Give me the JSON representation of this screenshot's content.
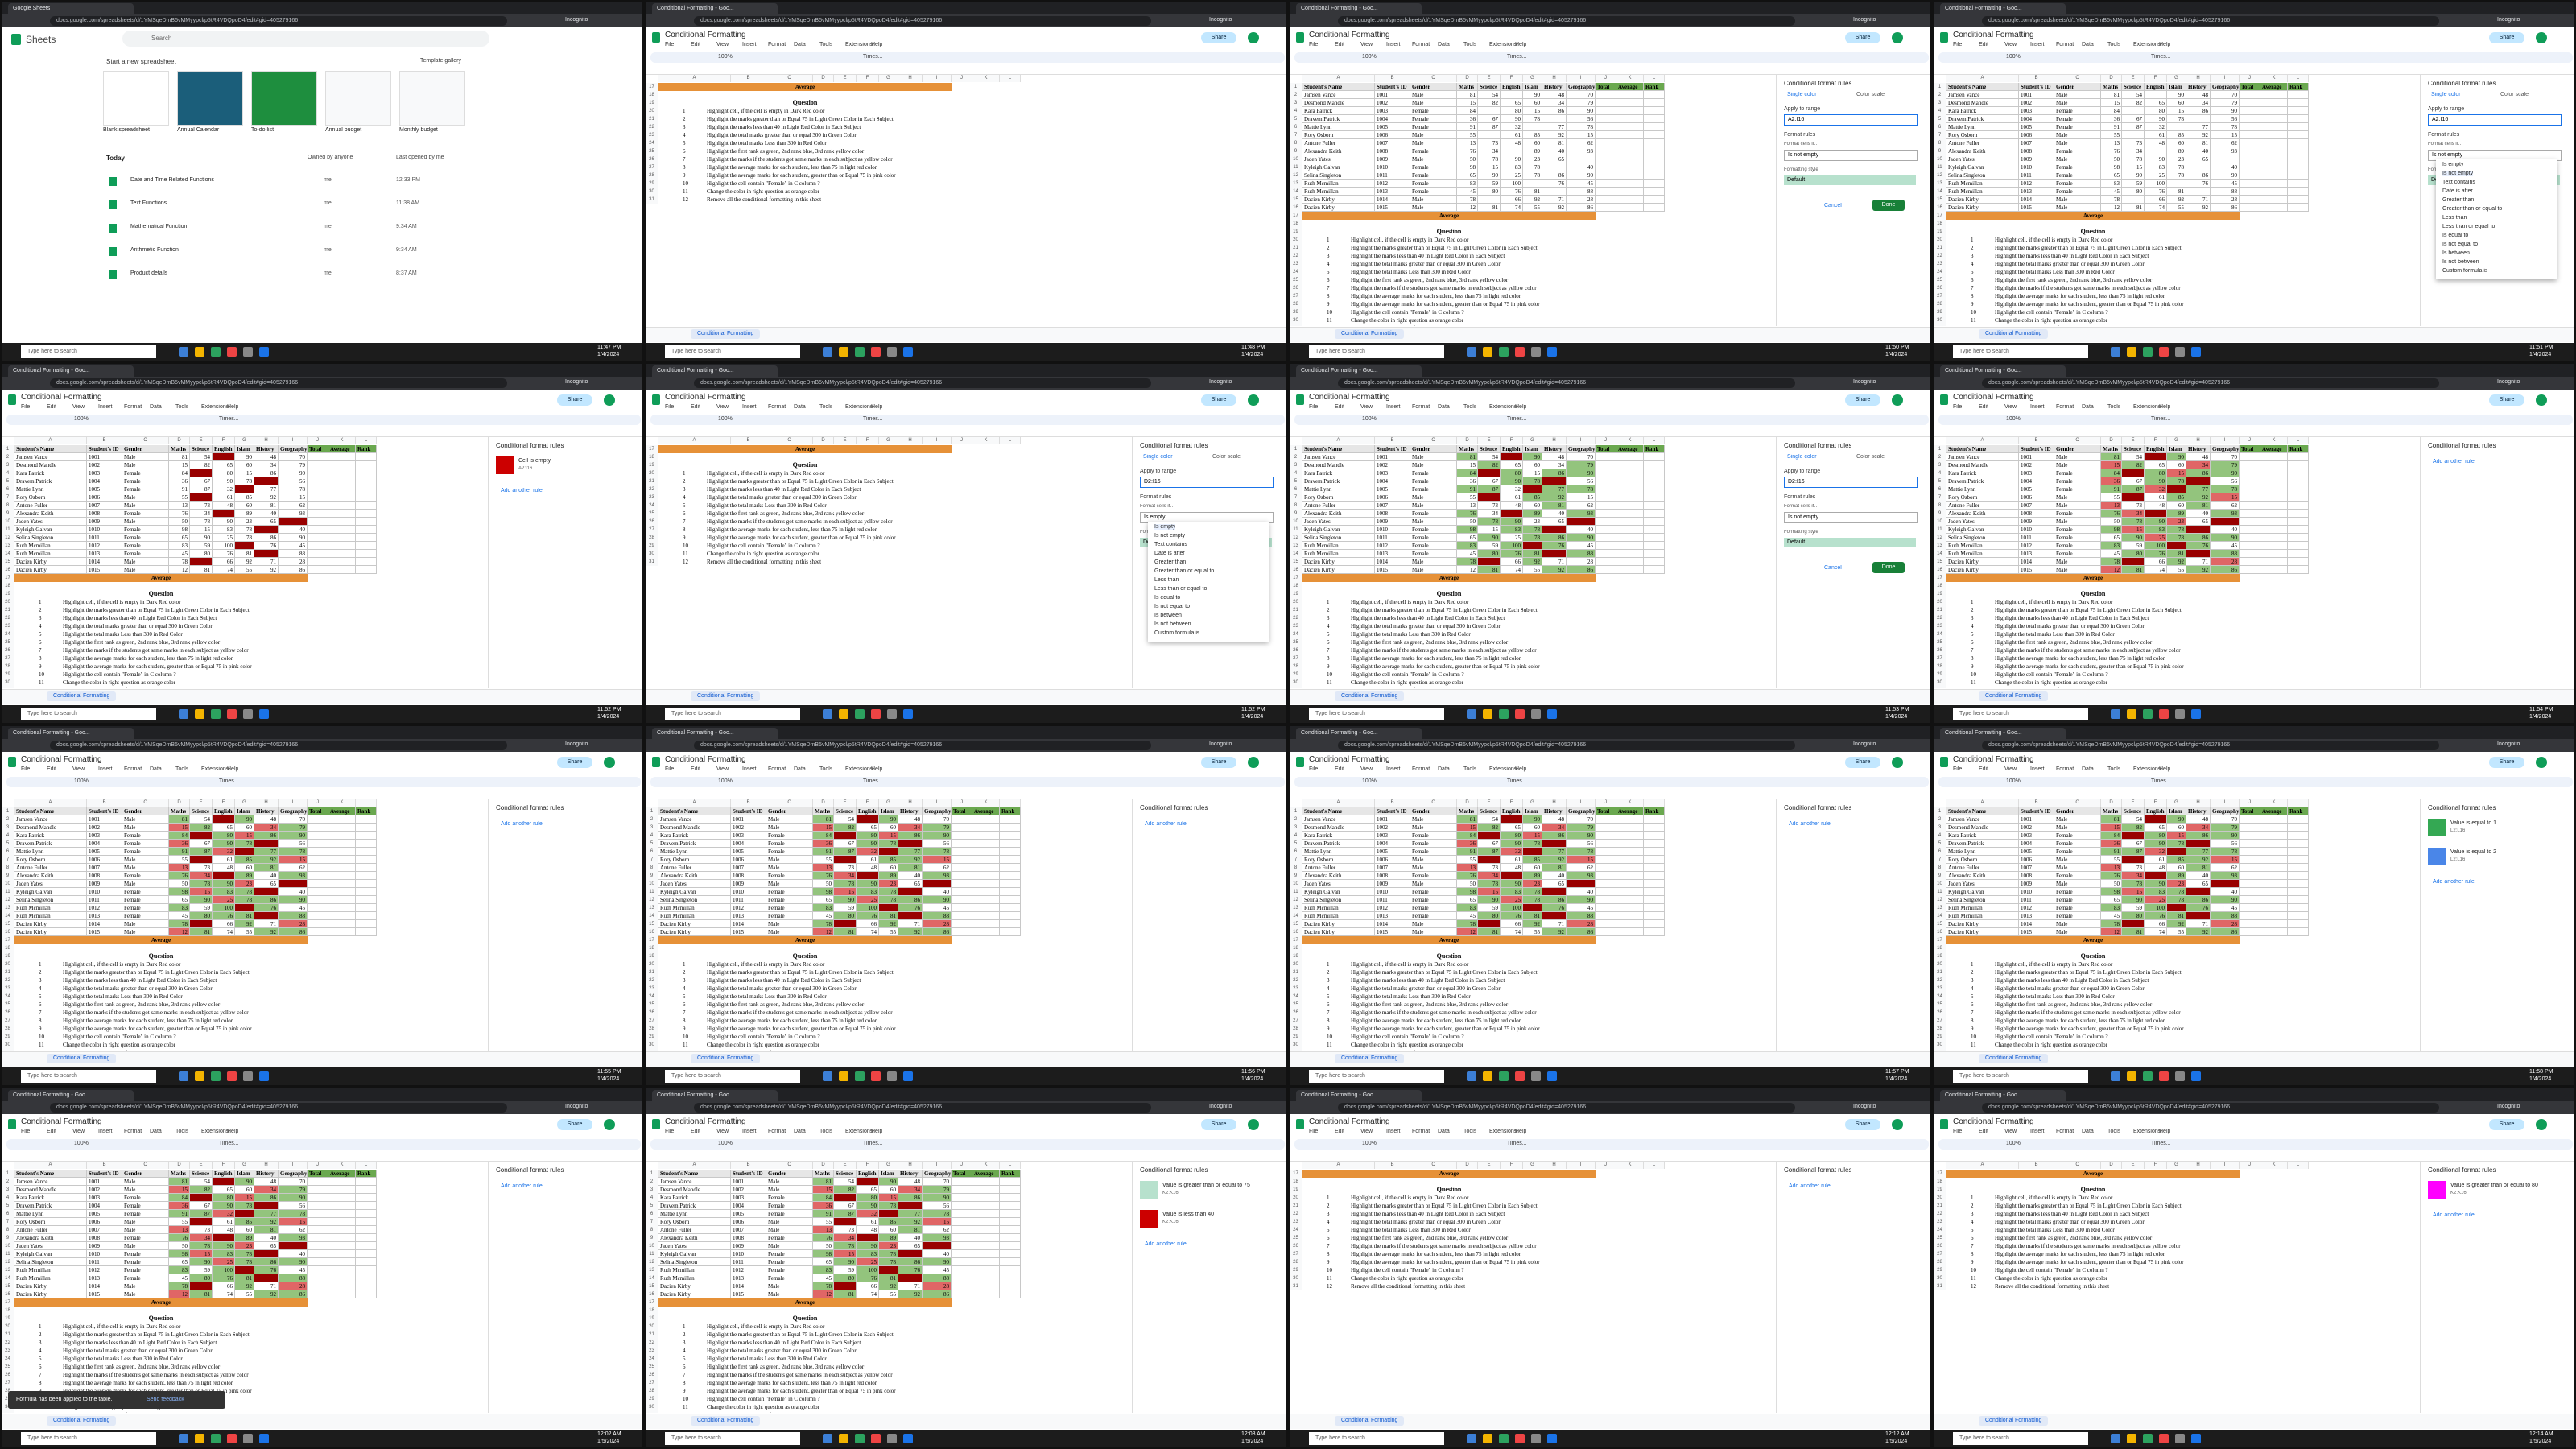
{
  "browser": {
    "url": "docs.google.com/spreadsheets/d/1YMSqeDmB5vMMyypcl/p5tR4VDQpoD4/edit#gid=405279166",
    "search": "Incognito"
  },
  "taskbar": {
    "search": "Type here to search"
  },
  "home": {
    "app": "Sheets",
    "search": "Search",
    "start": "Start a new spreadsheet",
    "template_gallery": "Template gallery",
    "templates": [
      "Blank spreadsheet",
      "Annual Calendar",
      "To-do list",
      "Annual budget",
      "Monthly budget"
    ],
    "today": "Today",
    "owner_filter": "Owned by anyone",
    "last_opened": "Last opened by me",
    "files": [
      {
        "name": "Date and Time Related Functions",
        "owner": "me",
        "time": "12:33 PM"
      },
      {
        "name": "Text Functions",
        "owner": "me",
        "time": "11:38 AM"
      },
      {
        "name": "Mathematical Function",
        "owner": "me",
        "time": "9:34 AM"
      },
      {
        "name": "Arithmetic Function",
        "owner": "me",
        "time": "9:34 AM"
      },
      {
        "name": "Product details",
        "owner": "me",
        "time": "8:37 AM"
      }
    ]
  },
  "sheet": {
    "title": "Conditional Formatting",
    "menus": [
      "File",
      "Edit",
      "View",
      "Insert",
      "Format",
      "Data",
      "Tools",
      "Extensions",
      "Help"
    ],
    "share": "Share",
    "zoom": "100%",
    "font": "Times...",
    "tab": "Conditional Formatting",
    "columns": [
      "A",
      "B",
      "C",
      "D",
      "E",
      "F",
      "G",
      "H",
      "I",
      "J",
      "K",
      "L",
      "M"
    ],
    "row_numbers": [
      1,
      2,
      3,
      4,
      5,
      6,
      7,
      8,
      9,
      10,
      11,
      12,
      13,
      14,
      15,
      16,
      17,
      18,
      19,
      20,
      21,
      22,
      23,
      24,
      25,
      26,
      27,
      28,
      29,
      30,
      31
    ],
    "headers": [
      "Student's Name",
      "Student's ID",
      "Gender",
      "Maths",
      "Science",
      "English",
      "Islam",
      "History",
      "Geography",
      "Total",
      "Average",
      "Rank"
    ],
    "students": [
      {
        "name": "Jamsen Vance",
        "id": "1001",
        "gender": "Male",
        "marks": [
          81,
          54,
          null,
          90,
          48,
          70
        ]
      },
      {
        "name": "Desmond Mandle",
        "id": "1002",
        "gender": "Male",
        "marks": [
          15,
          82,
          65,
          60,
          34,
          79
        ]
      },
      {
        "name": "Kara Patrick",
        "id": "1003",
        "gender": "Female",
        "marks": [
          84,
          null,
          80,
          15,
          86,
          90
        ]
      },
      {
        "name": "Dravem Patrick",
        "id": "1004",
        "gender": "Female",
        "marks": [
          36,
          67,
          90,
          78,
          null,
          56
        ]
      },
      {
        "name": "Mattie Lynn",
        "id": "1005",
        "gender": "Female",
        "marks": [
          91,
          87,
          32,
          null,
          77,
          78
        ]
      },
      {
        "name": "Rory Osborn",
        "id": "1006",
        "gender": "Male",
        "marks": [
          55,
          null,
          61,
          85,
          92,
          15
        ]
      },
      {
        "name": "Antone Fuller",
        "id": "1007",
        "gender": "Male",
        "marks": [
          13,
          73,
          48,
          60,
          81,
          62
        ]
      },
      {
        "name": "Alexandra Keith",
        "id": "1008",
        "gender": "Female",
        "marks": [
          76,
          34,
          null,
          89,
          40,
          93
        ]
      },
      {
        "name": "Jaden Yates",
        "id": "1009",
        "gender": "Male",
        "marks": [
          50,
          78,
          90,
          23,
          65,
          null
        ]
      },
      {
        "name": "Kyleigh Galvan",
        "id": "1010",
        "gender": "Female",
        "marks": [
          98,
          15,
          83,
          78,
          null,
          40
        ]
      },
      {
        "name": "Selina Singleton",
        "id": "1011",
        "gender": "Female",
        "marks": [
          65,
          90,
          25,
          78,
          86,
          90
        ]
      },
      {
        "name": "Ruth Mcmillan",
        "id": "1012",
        "gender": "Female",
        "marks": [
          83,
          59,
          100,
          null,
          76,
          45
        ]
      },
      {
        "name": "Ruth Mcmillan",
        "id": "1013",
        "gender": "Female",
        "marks": [
          45,
          80,
          76,
          81,
          null,
          88
        ]
      },
      {
        "name": "Dacien Kirby",
        "id": "1014",
        "gender": "Male",
        "marks": [
          78,
          null,
          66,
          92,
          71,
          28
        ]
      },
      {
        "name": "Dacien Kirby",
        "id": "1015",
        "gender": "Male",
        "marks": [
          12,
          81,
          74,
          55,
          92,
          86
        ]
      }
    ],
    "average": "Average",
    "question": "Question",
    "tasks": [
      {
        "n": 1,
        "text": "Highlight cell, if the cell is empty in Dark Red color"
      },
      {
        "n": 2,
        "text": "Highlight the marks greater than or Equal 75 in Light Green Color in Each Subject"
      },
      {
        "n": 3,
        "text": "Highlight the marks less than 40 in Light Red Color in Each Subject"
      },
      {
        "n": 4,
        "text": "Highlight the total marks greater than or equal 300 in Green Color"
      },
      {
        "n": 5,
        "text": "Highlight the total marks Less than 300 in Red Color"
      },
      {
        "n": 6,
        "text": "Highlight the first rank as green, 2nd rank blue, 3rd rank yellow color"
      },
      {
        "n": 7,
        "text": "Highlight the marks if the students got same marks in each subject as yellow color"
      },
      {
        "n": 8,
        "text": "Highlight the average marks for each student, less than 75 in light red color"
      },
      {
        "n": 9,
        "text": "Highlight the average marks for each student, greater than or Equal 75 in pink color"
      },
      {
        "n": 10,
        "text": "Highlight the cell contain \"Female\" in C column ?"
      },
      {
        "n": 11,
        "text": "Change the color in right question as orange color"
      },
      {
        "n": 12,
        "text": "Remove all the conditional formatting in this sheet"
      }
    ],
    "rules": {
      "empty": {
        "color": "#990000"
      },
      "gte": {
        "value": 75,
        "color": "#93c47d"
      },
      "lt": {
        "value": 40,
        "color": "#e06666"
      }
    }
  },
  "panel": {
    "title": "Conditional format rules",
    "add": "Add another rule",
    "single_color": "Single color",
    "color_scale": "Color scale",
    "apply": "Apply to range",
    "format_rules": "Format rules",
    "format_if": "Format cells if…",
    "style": "Formatting style",
    "default": "Default",
    "cancel": "Cancel",
    "done": "Done",
    "conditions": [
      "Is empty",
      "Is not empty",
      "Text contains",
      "Date is after",
      "Greater than",
      "Greater than or equal to",
      "Less than",
      "Less than or equal to",
      "Is equal to",
      "Is not equal to",
      "Is between",
      "Is not between",
      "Custom formula is"
    ]
  },
  "tiles": [
    {
      "kind": "home",
      "tab": "Google Sheets",
      "time": "11:47 PM",
      "date": "1/4/2024"
    },
    {
      "kind": "sheet",
      "view": "questions",
      "panel": "none",
      "applied": [],
      "tab": "Conditional Formatting - Goo...",
      "time": "11:48 PM",
      "date": "1/4/2024"
    },
    {
      "kind": "sheet",
      "view": "table",
      "panel": "editor",
      "range": "A2:I16",
      "condition": "Is not empty",
      "dropdown": false,
      "applied": [],
      "tab": "Conditional Formatting - Goo...",
      "time": "11:50 PM",
      "date": "1/4/2024"
    },
    {
      "kind": "sheet",
      "view": "table",
      "panel": "editor",
      "range": "A2:I16",
      "condition": "Is not empty",
      "dropdown": true,
      "applied": [],
      "tab": "Conditional Formatting - Goo...",
      "time": "11:51 PM",
      "date": "1/4/2024"
    },
    {
      "kind": "sheet",
      "view": "table",
      "panel": "list",
      "rules": [
        {
          "text": "Cell is empty",
          "range": "A2:I16",
          "color": "#cc0000"
        }
      ],
      "applied": [
        "empty"
      ],
      "tab": "Conditional Formatting - Goo...",
      "time": "11:52 PM",
      "date": "1/4/2024"
    },
    {
      "kind": "sheet",
      "view": "questions",
      "panel": "editor",
      "range": "D2:I16",
      "condition": "Is empty",
      "dropdown": true,
      "applied": [
        "empty"
      ],
      "tab": "Conditional Formatting - Goo...",
      "time": "11:52 PM",
      "date": "1/4/2024"
    },
    {
      "kind": "sheet",
      "view": "table",
      "panel": "editor",
      "range": "D2:I16",
      "condition": "Is not empty",
      "dropdown": false,
      "applied": [
        "empty",
        "gte"
      ],
      "tab": "Conditional Formatting - Goo...",
      "time": "11:53 PM",
      "date": "1/4/2024"
    },
    {
      "kind": "sheet",
      "view": "table",
      "panel": "list",
      "rules": [],
      "applied": [
        "empty",
        "gte",
        "lt"
      ],
      "tab": "Conditional Formatting - Goo...",
      "time": "11:54 PM",
      "date": "1/4/2024"
    },
    {
      "kind": "sheet",
      "view": "table",
      "panel": "list",
      "rules": [],
      "applied": [
        "empty",
        "gte",
        "lt"
      ],
      "tab": "Conditional Formatting - Goo...",
      "time": "11:55 PM",
      "date": "1/4/2024"
    },
    {
      "kind": "sheet",
      "view": "table",
      "panel": "list",
      "rules": [],
      "applied": [
        "empty",
        "gte",
        "lt"
      ],
      "tab": "Conditional Formatting - Goo...",
      "time": "11:56 PM",
      "date": "1/4/2024"
    },
    {
      "kind": "sheet",
      "view": "table",
      "panel": "list",
      "rules": [],
      "applied": [
        "empty",
        "gte",
        "lt"
      ],
      "tab": "Conditional Formatting - Goo...",
      "time": "11:57 PM",
      "date": "1/4/2024"
    },
    {
      "kind": "sheet",
      "view": "table",
      "panel": "list",
      "rules": [
        {
          "text": "Value is equal to 1",
          "range": "L2:L16",
          "color": "#34a853"
        },
        {
          "text": "Value is equal to 2",
          "range": "L2:L16",
          "color": "#4a86e8"
        }
      ],
      "applied": [
        "empty",
        "gte",
        "lt"
      ],
      "tab": "Conditional Formatting - Goo...",
      "time": "11:58 PM",
      "date": "1/4/2024"
    },
    {
      "kind": "sheet",
      "view": "table",
      "panel": "list",
      "rules": [],
      "applied": [
        "empty",
        "gte",
        "lt"
      ],
      "toast": "Formula has been applied to the table.",
      "feedback": "Send feedback",
      "tab": "Conditional Formatting - Goo...",
      "time": "12:02 AM",
      "date": "1/5/2024"
    },
    {
      "kind": "sheet",
      "view": "table",
      "panel": "list",
      "rules": [
        {
          "text": "Value is greater than or equal to 75",
          "range": "K2:K16",
          "color": "#b7e1cd"
        },
        {
          "text": "Value is less than 40",
          "range": "K2:K16",
          "color": "#cc0000"
        }
      ],
      "applied": [
        "empty",
        "gte",
        "lt"
      ],
      "tab": "Conditional Formatting - Goo...",
      "time": "12:08 AM",
      "date": "1/5/2024"
    },
    {
      "kind": "sheet",
      "view": "questions",
      "panel": "list",
      "rules": [],
      "applied": [
        "empty",
        "gte",
        "lt"
      ],
      "tab": "Conditional Formatting - Goo...",
      "time": "12:12 AM",
      "date": "1/5/2024"
    },
    {
      "kind": "sheet",
      "view": "questions",
      "panel": "list",
      "rules": [
        {
          "text": "Value is greater than or equal to 80",
          "range": "K2:K16",
          "color": "#ff00ff"
        }
      ],
      "applied": [
        "empty",
        "gte",
        "lt"
      ],
      "tab": "Conditional Formatting - Goo...",
      "time": "12:14 AM",
      "date": "1/5/2024"
    }
  ]
}
